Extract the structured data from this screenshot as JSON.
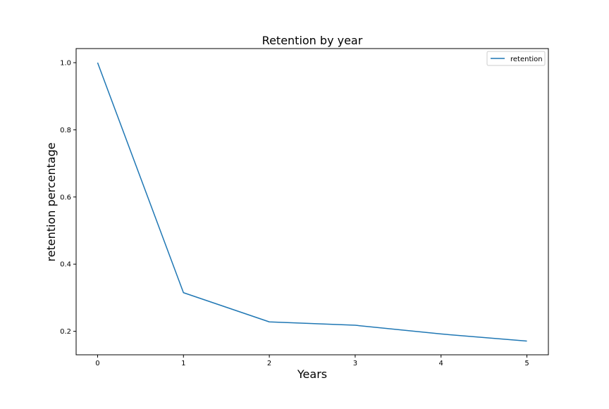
{
  "chart_data": {
    "type": "line",
    "title": "Retention by year",
    "xlabel": "Years",
    "ylabel": "retention percentage",
    "x": [
      0,
      1,
      2,
      3,
      4,
      5
    ],
    "series": [
      {
        "name": "retention",
        "values": [
          1.0,
          0.315,
          0.228,
          0.218,
          0.192,
          0.171
        ],
        "color": "#1f77b4"
      }
    ],
    "xticks": [
      "0",
      "1",
      "2",
      "3",
      "4",
      "5"
    ],
    "yticks": [
      "0.2",
      "0.4",
      "0.6",
      "0.8",
      "1.0"
    ],
    "xlim": [
      -0.25,
      5.25
    ],
    "ylim": [
      0.13,
      1.042
    ],
    "grid": false,
    "legend_position": "top-right"
  }
}
